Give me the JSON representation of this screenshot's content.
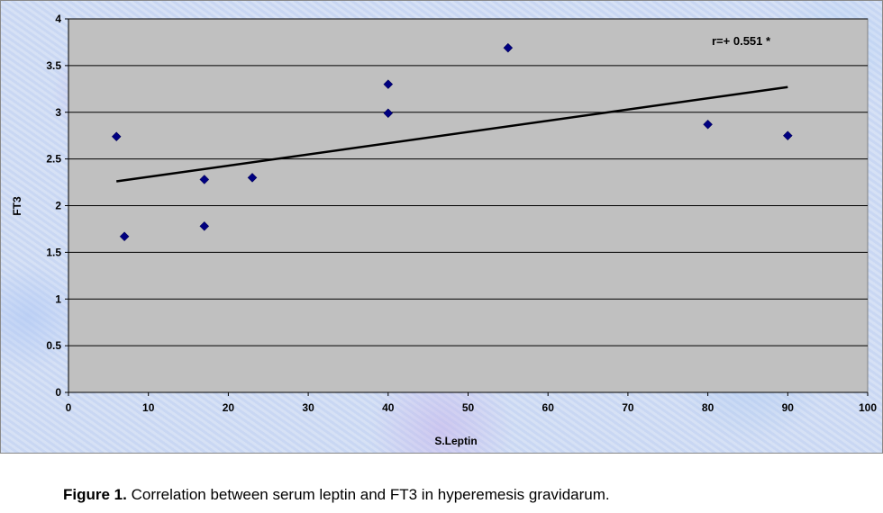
{
  "chart_data": {
    "type": "scatter",
    "xlabel": "S.Leptin",
    "ylabel": "FT3",
    "xlim": [
      0,
      100
    ],
    "ylim": [
      0,
      4
    ],
    "xticks": [
      "0",
      "10",
      "20",
      "30",
      "40",
      "50",
      "60",
      "70",
      "80",
      "90",
      "100"
    ],
    "yticks": [
      "0",
      "0.5",
      "1",
      "1.5",
      "2",
      "2.5",
      "3",
      "3.5",
      "4"
    ],
    "grid": "horizontal",
    "series": [
      {
        "marker": "diamond",
        "color": "#000080",
        "points": [
          {
            "x": 6,
            "y": 2.74
          },
          {
            "x": 7,
            "y": 1.67
          },
          {
            "x": 17,
            "y": 2.28
          },
          {
            "x": 17,
            "y": 1.78
          },
          {
            "x": 23,
            "y": 2.3
          },
          {
            "x": 40,
            "y": 3.3
          },
          {
            "x": 40,
            "y": 2.99
          },
          {
            "x": 55,
            "y": 3.69
          },
          {
            "x": 80,
            "y": 2.87
          },
          {
            "x": 90,
            "y": 2.75
          }
        ]
      }
    ],
    "trendline": {
      "x": [
        6,
        90
      ],
      "y": [
        2.26,
        3.27
      ],
      "color": "#000000"
    },
    "annotation": "r=+ 0.551 *",
    "plot_background": "#c0c0c0"
  },
  "caption": {
    "label": "Figure 1.",
    "text": " Correlation between serum leptin and FT3 in hyperemesis gravidarum."
  }
}
